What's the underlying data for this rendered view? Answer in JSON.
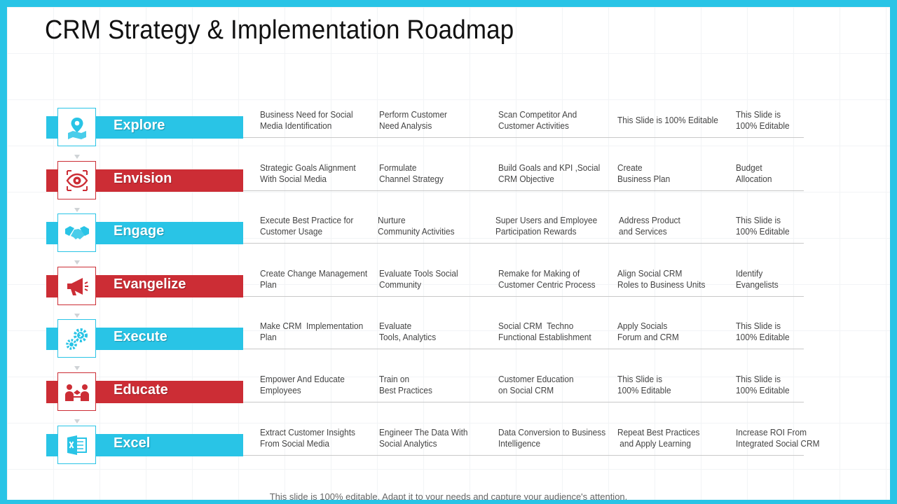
{
  "title": "CRM Strategy & Implementation Roadmap",
  "footer": "This slide is 100% editable. Adapt it to your needs and capture your audience's attention.",
  "colors": {
    "blue": "#29c4e6",
    "red": "#cc2d35"
  },
  "stages": [
    {
      "label": "Explore",
      "color": "blue",
      "icon": "location-pin-icon",
      "cells": [
        "Business Need for Social\nMedia Identification",
        "Perform Customer\nNeed Analysis",
        "Scan Competitor And\nCustomer Activities",
        "This Slide is 100% Editable",
        "This Slide is\n100% Editable"
      ]
    },
    {
      "label": "Envision",
      "color": "red",
      "icon": "eye-target-icon",
      "cells": [
        "Strategic Goals Alignment\nWith Social Media",
        "Formulate\nChannel Strategy",
        "Build Goals and KPI ,Social\nCRM Objective",
        "Create\nBusiness Plan",
        "Budget\nAllocation"
      ]
    },
    {
      "label": "Engage",
      "color": "blue",
      "icon": "handshake-icon",
      "cells": [
        "Execute Best Practice for\nCustomer Usage",
        "Nurture\nCommunity Activities",
        "Super Users and Employee\nParticipation Rewards",
        "Address Product\nand Services",
        "This Slide is\n100% Editable"
      ]
    },
    {
      "label": "Evangelize",
      "color": "red",
      "icon": "megaphone-icon",
      "cells": [
        "Create Change Management\nPlan",
        "Evaluate Tools Social\nCommunity",
        "Remake for Making of\nCustomer Centric Process",
        "Align Social CRM\nRoles to Business Units",
        "Identify\nEvangelists"
      ]
    },
    {
      "label": "Execute",
      "color": "blue",
      "icon": "gears-icon",
      "cells": [
        "Make CRM  Implementation\nPlan",
        "Evaluate\nTools, Analytics",
        "Social CRM  Techno\nFunctional Establishment",
        "Apply Socials\nForum and CRM",
        "This Slide is\n100% Editable"
      ]
    },
    {
      "label": "Educate",
      "color": "red",
      "icon": "teacher-students-icon",
      "cells": [
        "Empower And Educate\nEmployees",
        "Train on\nBest Practices",
        "Customer Education\non Social CRM",
        "This Slide is\n100% Editable",
        "This Slide is\n100% Editable"
      ]
    },
    {
      "label": "Excel",
      "color": "blue",
      "icon": "excel-icon",
      "cells": [
        "Extract Customer Insights\nFrom Social Media",
        "Engineer The Data With\nSocial Analytics",
        "Data Conversion to Business\nIntelligence",
        "Repeat Best Practices\n and Apply Learning",
        "Increase ROI From\nIntegrated Social CRM"
      ]
    }
  ]
}
